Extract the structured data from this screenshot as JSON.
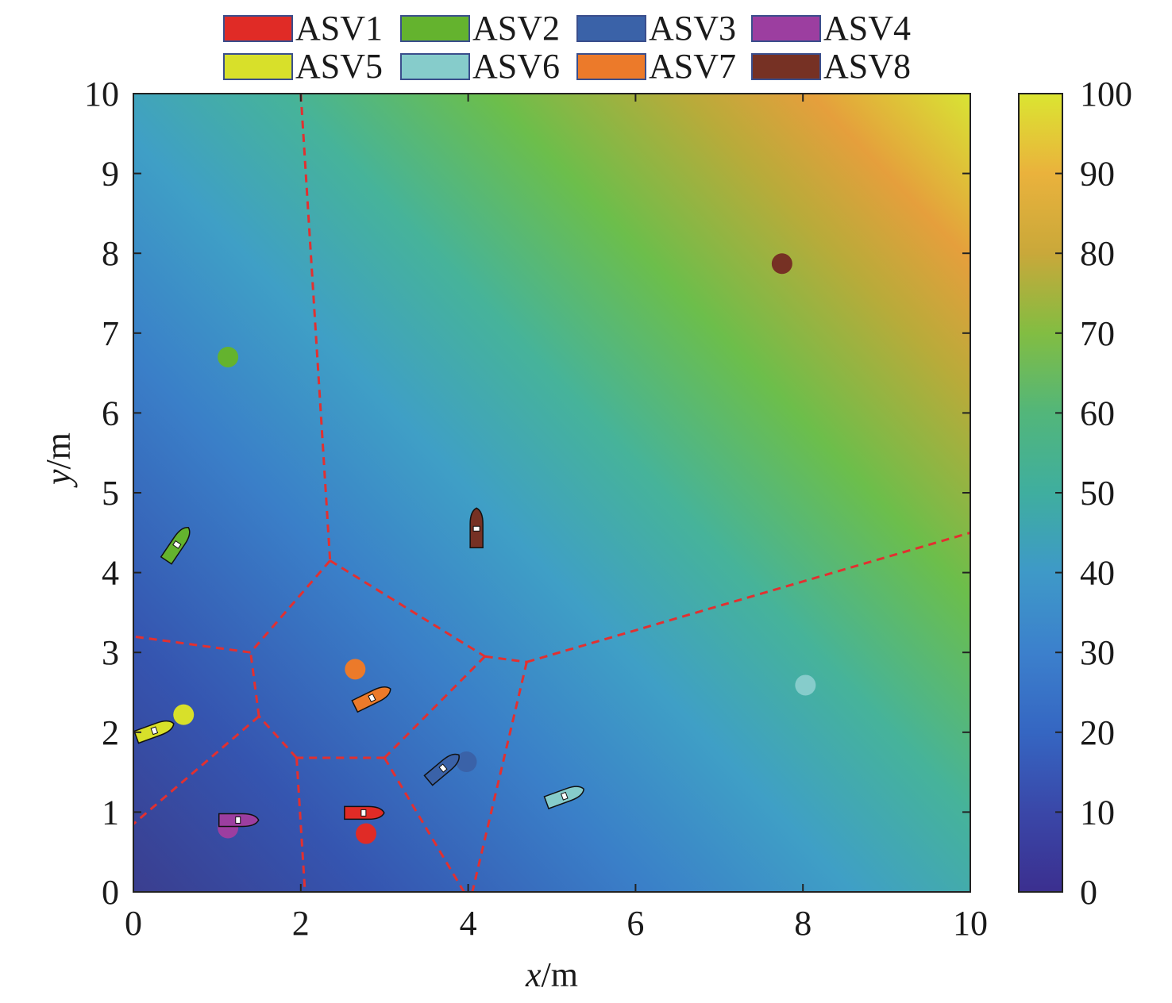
{
  "chart_data": {
    "type": "heatmap",
    "title": "",
    "xlabel_var": "x",
    "xlabel_unit": "/m",
    "ylabel_var": "y",
    "ylabel_unit": "/m",
    "xlim": [
      0,
      10
    ],
    "ylim": [
      0,
      10
    ],
    "xticks": [
      0,
      2,
      4,
      6,
      8,
      10
    ],
    "yticks": [
      0,
      1,
      2,
      3,
      4,
      5,
      6,
      7,
      8,
      9,
      10
    ],
    "x_tick_labels": [
      "0",
      "2",
      "4",
      "6",
      "8",
      "10"
    ],
    "y_tick_labels": [
      "0",
      "1",
      "2",
      "3",
      "4",
      "5",
      "6",
      "7",
      "8",
      "9",
      "10"
    ],
    "grid": false,
    "colorbar": {
      "range": [
        0,
        100
      ],
      "ticks": [
        0,
        10,
        20,
        30,
        40,
        50,
        60,
        70,
        80,
        90,
        100
      ],
      "tick_labels": [
        "0",
        "10",
        "20",
        "30",
        "40",
        "50",
        "60",
        "70",
        "80",
        "90",
        "100"
      ],
      "colormap": "parula",
      "position": "right"
    },
    "legend": {
      "placement": "top",
      "entries": [
        {
          "name": "ASV1",
          "color": "#e02b26"
        },
        {
          "name": "ASV2",
          "color": "#64b32e"
        },
        {
          "name": "ASV3",
          "color": "#3a62a8"
        },
        {
          "name": "ASV4",
          "color": "#9c3ea0"
        },
        {
          "name": "ASV5",
          "color": "#d8e02a"
        },
        {
          "name": "ASV6",
          "color": "#86cccb"
        },
        {
          "name": "ASV7",
          "color": "#ec7a2a"
        },
        {
          "name": "ASV8",
          "color": "#763124"
        }
      ]
    },
    "targets": [
      {
        "asv": "ASV1",
        "x": 2.78,
        "y": 0.73
      },
      {
        "asv": "ASV2",
        "x": 1.13,
        "y": 6.7
      },
      {
        "asv": "ASV3",
        "x": 3.98,
        "y": 1.63
      },
      {
        "asv": "ASV4",
        "x": 1.13,
        "y": 0.8
      },
      {
        "asv": "ASV5",
        "x": 0.6,
        "y": 2.22
      },
      {
        "asv": "ASV6",
        "x": 8.03,
        "y": 2.59
      },
      {
        "asv": "ASV7",
        "x": 2.65,
        "y": 2.79
      },
      {
        "asv": "ASV8",
        "x": 7.75,
        "y": 7.87
      }
    ],
    "boats": [
      {
        "asv": "ASV1",
        "x": 2.75,
        "y": 0.99,
        "heading_deg": 0
      },
      {
        "asv": "ASV2",
        "x": 0.52,
        "y": 4.35,
        "heading_deg": 56
      },
      {
        "asv": "ASV3",
        "x": 3.7,
        "y": 1.55,
        "heading_deg": 40
      },
      {
        "asv": "ASV4",
        "x": 1.25,
        "y": 0.9,
        "heading_deg": 0
      },
      {
        "asv": "ASV5",
        "x": 0.25,
        "y": 2.02,
        "heading_deg": 20
      },
      {
        "asv": "ASV6",
        "x": 5.15,
        "y": 1.2,
        "heading_deg": 20
      },
      {
        "asv": "ASV7",
        "x": 2.85,
        "y": 2.43,
        "heading_deg": 26
      },
      {
        "asv": "ASV8",
        "x": 4.1,
        "y": 4.55,
        "heading_deg": 90
      }
    ],
    "voronoi_edges": [
      [
        [
          2.0,
          10.0
        ],
        [
          2.35,
          4.15
        ]
      ],
      [
        [
          2.35,
          4.15
        ],
        [
          1.4,
          3.0
        ]
      ],
      [
        [
          2.35,
          4.15
        ],
        [
          4.2,
          2.95
        ]
      ],
      [
        [
          4.2,
          2.95
        ],
        [
          4.7,
          2.88
        ]
      ],
      [
        [
          4.7,
          2.88
        ],
        [
          10.0,
          4.5
        ]
      ],
      [
        [
          4.7,
          2.88
        ],
        [
          4.05,
          0.0
        ]
      ],
      [
        [
          4.2,
          2.95
        ],
        [
          3.0,
          1.68
        ]
      ],
      [
        [
          3.0,
          1.68
        ],
        [
          1.95,
          1.68
        ]
      ],
      [
        [
          3.0,
          1.68
        ],
        [
          3.95,
          0.0
        ]
      ],
      [
        [
          1.95,
          1.68
        ],
        [
          2.05,
          0.0
        ]
      ],
      [
        [
          1.95,
          1.68
        ],
        [
          1.5,
          2.2
        ]
      ],
      [
        [
          1.5,
          2.2
        ],
        [
          1.4,
          3.0
        ]
      ],
      [
        [
          1.4,
          3.0
        ],
        [
          0.0,
          3.2
        ]
      ],
      [
        [
          1.5,
          2.2
        ],
        [
          0.0,
          0.85
        ]
      ]
    ],
    "boundary_style": {
      "color": "#e23030",
      "dash": "dashed"
    }
  }
}
